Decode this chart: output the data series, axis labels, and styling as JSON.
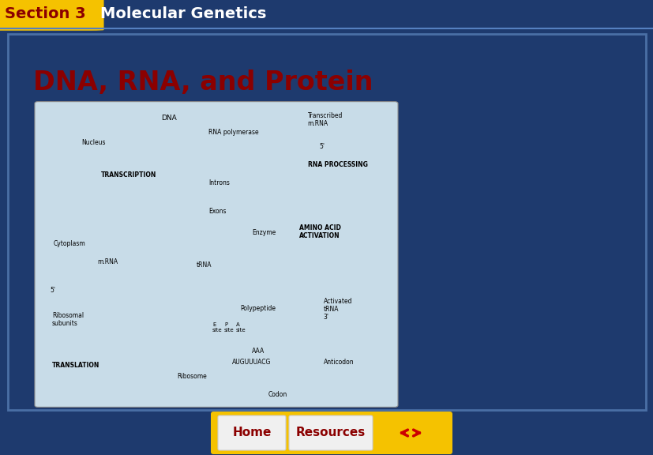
{
  "figsize": [
    8.28,
    5.76
  ],
  "dpi": 100,
  "outer_bg": "#1e3a6e",
  "inner_bg": "#ffffff",
  "header_section_bg": "#f5c200",
  "header_section_text": "Section 3",
  "header_section_text_color": "#8b0000",
  "header_section_fontsize": 14,
  "header_bar_bg": "#1a2d6b",
  "header_bar_text": "Molecular Genetics",
  "header_bar_text_color": "#ffffff",
  "header_bar_fontsize": 14,
  "main_title": "DNA, RNA, and Protein",
  "main_title_color": "#8b0000",
  "main_title_fontsize": 24,
  "bottom_bar_bg": "#1e3a6e",
  "nav_btn_bg": "#f5c200",
  "nav_btn_border": "#ffffff",
  "home_text": "Home",
  "resources_text": "Resources",
  "nav_text_color": "#8b0000",
  "nav_text_fontsize": 11,
  "arrow_color": "#cc0000",
  "inner_border_color": "#4a6fa5",
  "inner_border_lw": 2,
  "diagram_bg": "#c8dce8",
  "diagram_border": "#888888"
}
